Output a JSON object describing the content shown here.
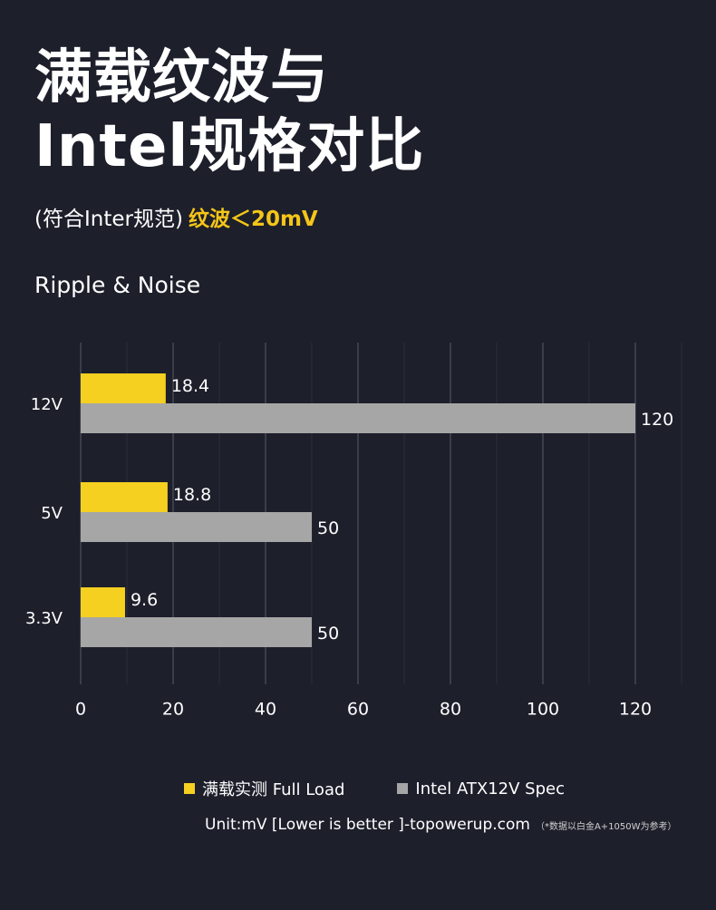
{
  "title_lines": [
    "满载纹波与",
    "Intel规格对比"
  ],
  "subtitle": {
    "prefix": "(符合Inter规范)",
    "highlight": "纹波＜20mV"
  },
  "chart_heading": "Ripple & Noise",
  "colors": {
    "background": "#1d1f2b",
    "measured": "#f5d020",
    "spec": "#a6a6a6",
    "highlight": "#f5c518"
  },
  "chart_data": {
    "type": "bar",
    "orientation": "horizontal",
    "title": "Ripple & Noise",
    "categories": [
      "12V",
      "5V",
      "3.3V"
    ],
    "series": [
      {
        "name": "满载实测 Full Load",
        "values": [
          18.4,
          18.8,
          9.6
        ],
        "color": "#f5d020"
      },
      {
        "name": "Intel ATX12V Spec",
        "values": [
          120,
          50,
          50
        ],
        "color": "#a6a6a6"
      }
    ],
    "xlim": [
      0,
      130
    ],
    "xticks": [
      0,
      20,
      40,
      60,
      80,
      100,
      120
    ],
    "grid": true,
    "legend_position": "bottom"
  },
  "legend": [
    {
      "label": "满载实测 Full Load",
      "color": "#f5d020"
    },
    {
      "label": "Intel ATX12V Spec",
      "color": "#a6a6a6"
    }
  ],
  "unit_line": "Unit:mV [Lower is better ]-topowerup.com",
  "unit_note": "（*数据以白金A+1050W为参考）"
}
